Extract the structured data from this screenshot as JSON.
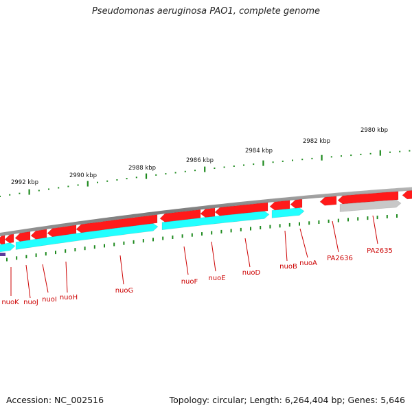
{
  "title": "Pseudomonas aeruginosa PAO1, complete genome",
  "footer": {
    "accession": "Accession: NC_002516",
    "topology": "Topology: circular; Length: 6,264,404 bp; Genes: 5,646"
  },
  "colors": {
    "backbone": "#8a8a8a",
    "forward_gene": "#ff1a1a",
    "cds_band": "#22ffff",
    "tick": "#1e8a1e",
    "gene_label": "#cc0000",
    "pseudo_gene": "#c8c8c8",
    "left_marker": "#5b3a9a"
  },
  "scale": {
    "ticks": [
      {
        "label": "2992 kbp"
      },
      {
        "label": "2990 kbp"
      },
      {
        "label": "2988 kbp"
      },
      {
        "label": "2986 kbp"
      },
      {
        "label": "2984 kbp"
      },
      {
        "label": "2982 kbp"
      },
      {
        "label": "2980 kbp"
      }
    ]
  },
  "genes": [
    {
      "name": "nuoK"
    },
    {
      "name": "nuoJ"
    },
    {
      "name": "nuoI"
    },
    {
      "name": "nuoH"
    },
    {
      "name": "nuoG"
    },
    {
      "name": "nuoF"
    },
    {
      "name": "nuoE"
    },
    {
      "name": "nuoD"
    },
    {
      "name": "nuoB"
    },
    {
      "name": "nuoA"
    },
    {
      "name": "PA2636"
    },
    {
      "name": "PA2635"
    }
  ]
}
